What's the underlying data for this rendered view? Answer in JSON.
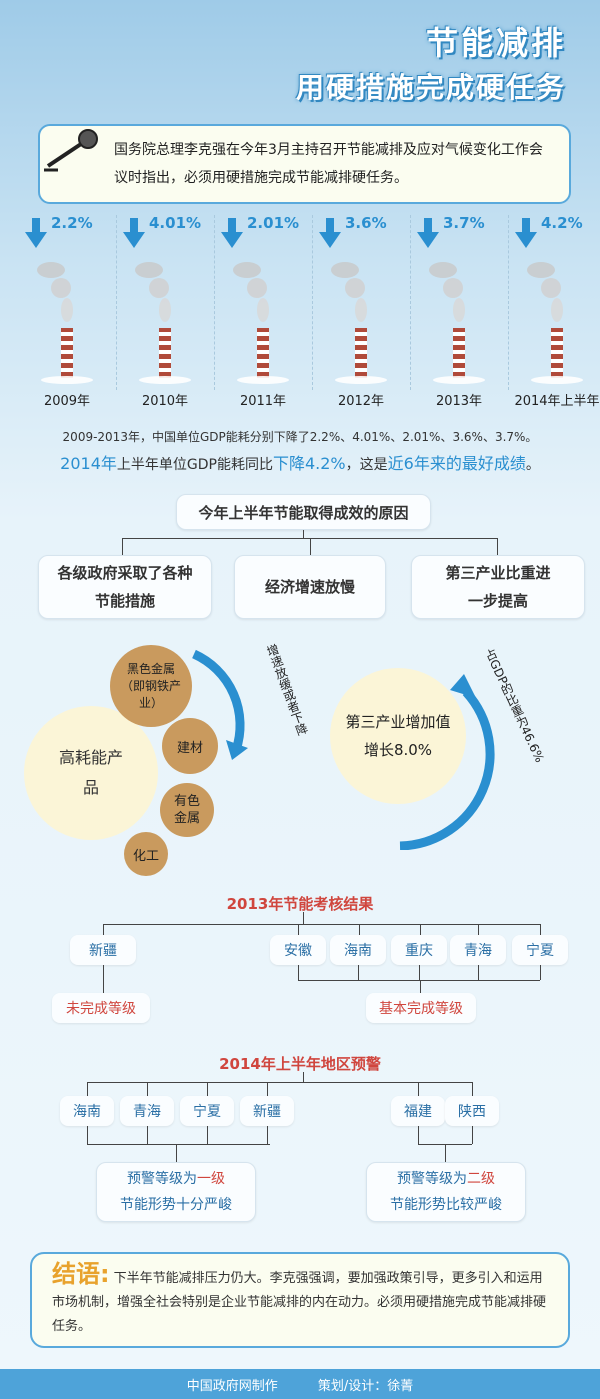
{
  "header": {
    "title": "节能减排",
    "subtitle": "用硬措施完成硬任务"
  },
  "intro": {
    "text": "国务院总理李克强在今年3月主持召开节能减排及应对气候变化工作会议时指出，必须用硬措施完成节能减排硬任务。"
  },
  "years": [
    {
      "year": "2009年",
      "drop": "2.2%"
    },
    {
      "year": "2010年",
      "drop": "4.01%"
    },
    {
      "year": "2011年",
      "drop": "2.01%"
    },
    {
      "year": "2012年",
      "drop": "3.6%"
    },
    {
      "year": "2013年",
      "drop": "3.7%"
    },
    {
      "year": "2014年上半年",
      "drop": "4.2%"
    }
  ],
  "summary": {
    "line1": "2009-2013年，中国单位GDP能耗分别下降了2.2%、4.01%、2.01%、3.6%、3.7%。",
    "line2_a": "2014年",
    "line2_b": "上半年单位GDP能耗同比",
    "line2_c": "下降4.2%",
    "line2_d": "，这是",
    "line2_e": "近6年来的最好成绩",
    "line2_f": "。"
  },
  "reasons": {
    "title": "今年上半年节能取得成效的原因",
    "items": [
      "各级政府采取了各种节能措施",
      "经济增速放慢",
      "第三产业比重进一步提高"
    ]
  },
  "energy": {
    "main": "高耗能产品",
    "subs": [
      "黑色金属（即钢铁产业）",
      "建材",
      "有色金属",
      "化工"
    ],
    "arc_label": "增速放缓或者下降"
  },
  "tertiary": {
    "main": "第三产业增加值增长8.0%",
    "arc_label": "占GDP的比重为46.6%"
  },
  "assess2013": {
    "title": "2013年节能考核结果",
    "failed": [
      "新疆"
    ],
    "passed": [
      "安徽",
      "海南",
      "重庆",
      "青海",
      "宁夏"
    ],
    "failed_label": "未完成等级",
    "passed_label": "基本完成等级"
  },
  "warn2014": {
    "title": "2014年上半年地区预警",
    "level1_regions": [
      "海南",
      "青海",
      "宁夏",
      "新疆"
    ],
    "level2_regions": [
      "福建",
      "陕西"
    ],
    "level1_a": "预警等级为",
    "level1_b": "一级",
    "level1_c": "节能形势十分严峻",
    "level2_a": "预警等级为",
    "level2_b": "二级",
    "level2_c": "节能形势比较严峻"
  },
  "ending": {
    "tag": "结语:",
    "text": "下半年节能减排压力仍大。李克强强调，要加强政策引导，更多引入和运用市场机制，增强全社会特别是企业节能减排的内在动力。必须用硬措施完成节能减排硬任务。"
  },
  "footer": {
    "maker": "中国政府网制作",
    "designer": "策划/设计：徐菁"
  },
  "colors": {
    "accent": "#2a8fd0",
    "red": "#d0463e",
    "gold": "#c99a5e",
    "cream": "#fbf5d7"
  }
}
